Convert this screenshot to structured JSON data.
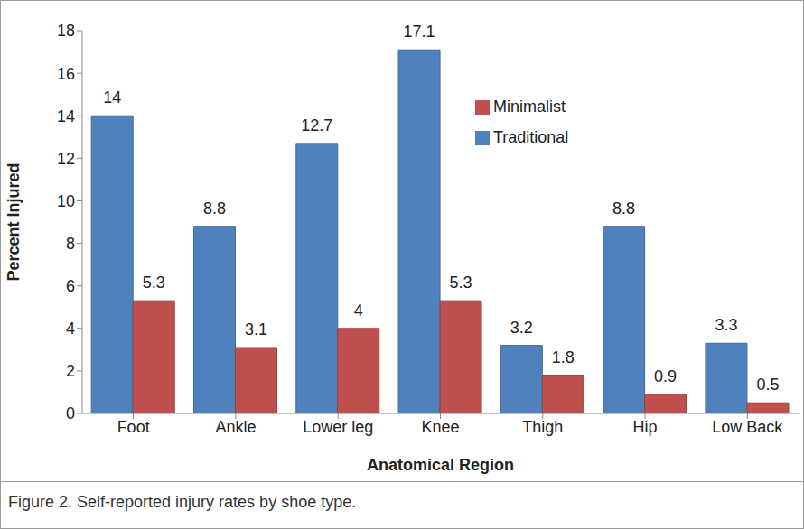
{
  "chart_data": {
    "type": "bar",
    "caption": "Figure 2. Self-reported injury rates by shoe type.",
    "x_label": "Anatomical Region",
    "y_label": "Percent Injured",
    "categories": [
      "Foot",
      "Ankle",
      "Lower leg",
      "Knee",
      "Thigh",
      "Hip",
      "Low Back"
    ],
    "series": [
      {
        "name": "Traditional",
        "color": "#4f81bd",
        "values": [
          14,
          8.8,
          12.7,
          17.1,
          3.2,
          8.8,
          3.3
        ]
      },
      {
        "name": "Minimalist",
        "color": "#c0504d",
        "values": [
          5.3,
          3.1,
          4,
          5.3,
          1.8,
          0.9,
          0.5
        ]
      }
    ],
    "ylim": [
      0,
      18
    ],
    "yticks": [
      0,
      2,
      4,
      6,
      8,
      10,
      12,
      14,
      16,
      18
    ],
    "grid": false,
    "legend": "upper right",
    "data_labels": true
  }
}
